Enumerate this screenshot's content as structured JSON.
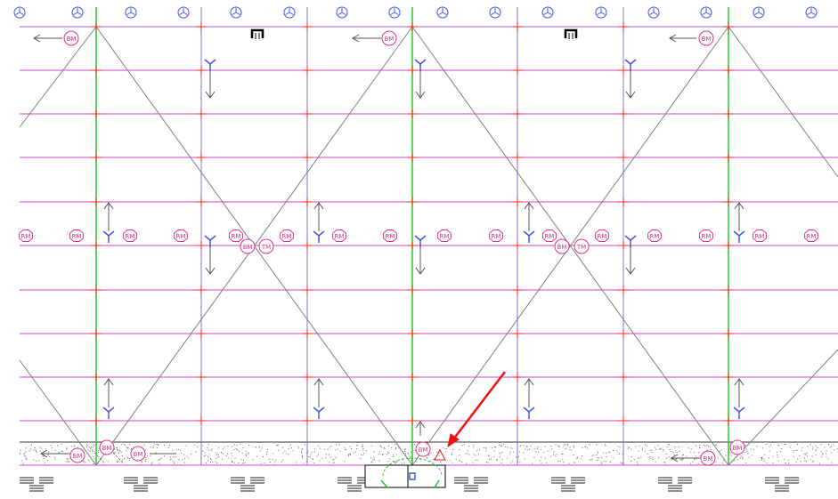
{
  "markers": {
    "beam_marker": "BM",
    "rafter_marker": "RM",
    "truss_marker": "TM"
  },
  "colors": {
    "background": "#ffffff",
    "purlin_line": "#cc44cc",
    "column_line": "#9966dd",
    "brace_line": "#808080",
    "highlight_column": "#22cc22",
    "intersection_cross": "#ff2222",
    "marker": "#dd3388",
    "support_icon": "#4455dd",
    "arrow_pointer": "#ee1111",
    "ground_hatch": "#666666"
  },
  "icons": {
    "column_head": "tri-star-icon",
    "direction": "arrow-icon",
    "anchor": "anchor-bracket-icon",
    "foundation": "footing-block-icon",
    "callout": "red-arrow-icon"
  }
}
